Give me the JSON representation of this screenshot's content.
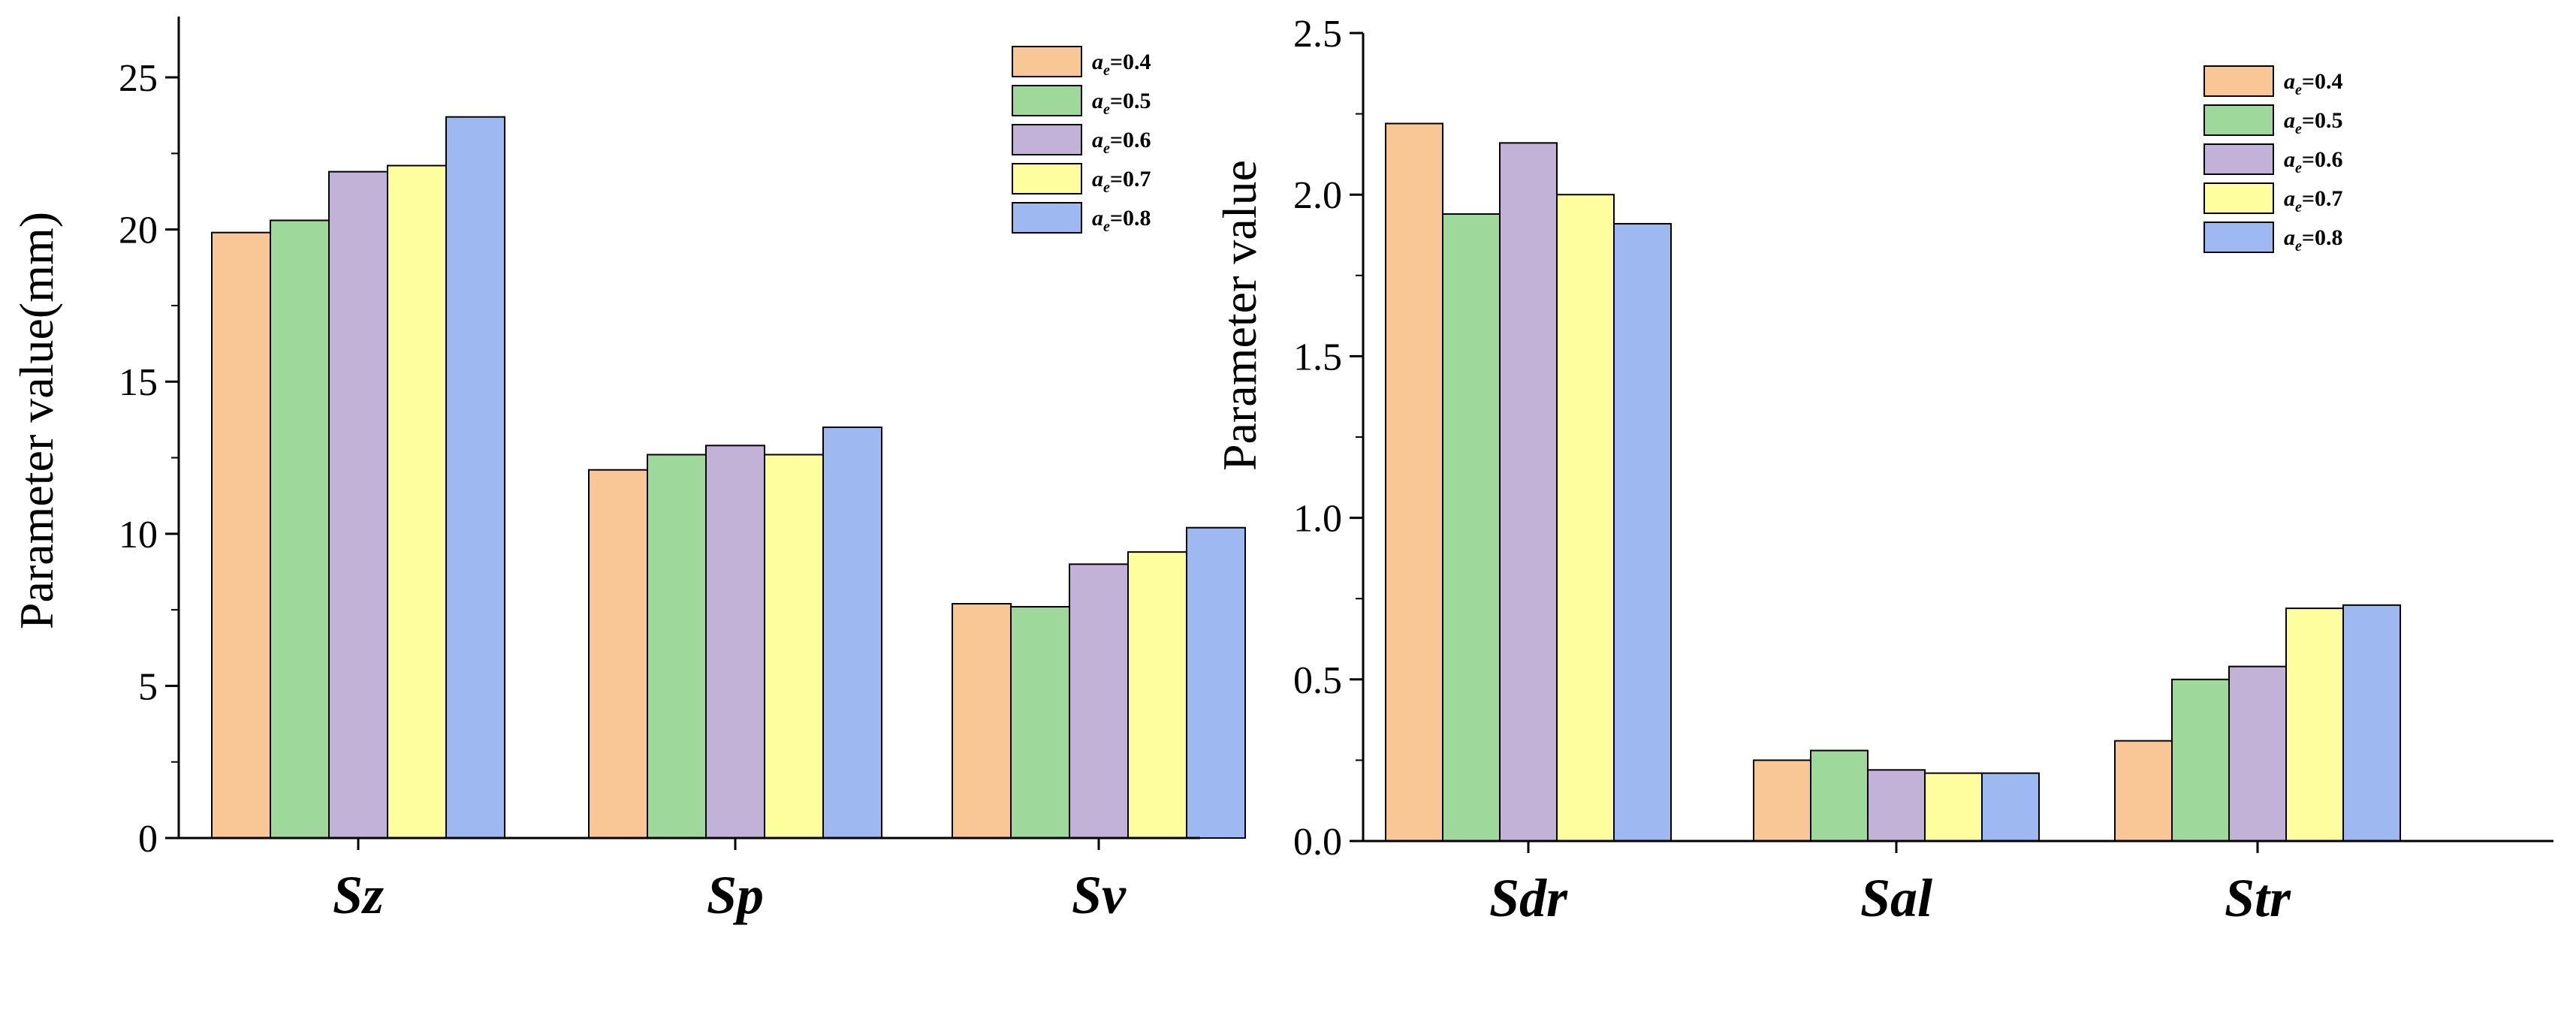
{
  "chart_data": [
    {
      "type": "bar",
      "title": "",
      "xlabel": "",
      "ylabel": "Parameter value(mm)",
      "ylim": [
        0,
        27
      ],
      "yticks": [
        0,
        5,
        10,
        15,
        20,
        25
      ],
      "yticklabels": [
        "0",
        "5",
        "10",
        "15",
        "20",
        "25"
      ],
      "categories": [
        "Sz",
        "Sp",
        "Sv"
      ],
      "legend_position": "top-right",
      "series": [
        {
          "name": "ae=0.4",
          "prefix": "a",
          "sub": "e",
          "suffix": "=0.4",
          "color": "#F9C796",
          "values": [
            19.9,
            12.1,
            7.7
          ]
        },
        {
          "name": "ae=0.5",
          "prefix": "a",
          "sub": "e",
          "suffix": "=0.5",
          "color": "#9ED89B",
          "values": [
            20.3,
            12.6,
            7.6
          ]
        },
        {
          "name": "ae=0.6",
          "prefix": "a",
          "sub": "e",
          "suffix": "=0.6",
          "color": "#C3B2D8",
          "values": [
            21.9,
            12.9,
            9.0
          ]
        },
        {
          "name": "ae=0.7",
          "prefix": "a",
          "sub": "e",
          "suffix": "=0.7",
          "color": "#FFFE9F",
          "values": [
            22.1,
            12.6,
            9.4
          ]
        },
        {
          "name": "ae=0.8",
          "prefix": "a",
          "sub": "e",
          "suffix": "=0.8",
          "color": "#9EB8F2",
          "values": [
            23.7,
            13.5,
            10.2
          ]
        }
      ]
    },
    {
      "type": "bar",
      "title": "",
      "xlabel": "",
      "ylabel": "Parameter value",
      "ylim": [
        0,
        2.5
      ],
      "yticks": [
        0,
        0.5,
        1.0,
        1.5,
        2.0,
        2.5
      ],
      "yticklabels": [
        "0.0",
        "0.5",
        "1.0",
        "1.5",
        "2.0",
        "2.5"
      ],
      "categories": [
        "Sdr",
        "Sal",
        "Str"
      ],
      "legend_position": "top-right",
      "series": [
        {
          "name": "ae=0.4",
          "prefix": "a",
          "sub": "e",
          "suffix": "=0.4",
          "color": "#F9C796",
          "values": [
            2.22,
            0.25,
            0.31
          ]
        },
        {
          "name": "ae=0.5",
          "prefix": "a",
          "sub": "e",
          "suffix": "=0.5",
          "color": "#9ED89B",
          "values": [
            1.94,
            0.28,
            0.5
          ]
        },
        {
          "name": "ae=0.6",
          "prefix": "a",
          "sub": "e",
          "suffix": "=0.6",
          "color": "#C3B2D8",
          "values": [
            2.16,
            0.22,
            0.54
          ]
        },
        {
          "name": "ae=0.7",
          "prefix": "a",
          "sub": "e",
          "suffix": "=0.7",
          "color": "#FFFE9F",
          "values": [
            2.0,
            0.21,
            0.72
          ]
        },
        {
          "name": "ae=0.8",
          "prefix": "a",
          "sub": "e",
          "suffix": "=0.8",
          "color": "#9EB8F2",
          "values": [
            1.91,
            0.21,
            0.73
          ]
        }
      ]
    }
  ]
}
